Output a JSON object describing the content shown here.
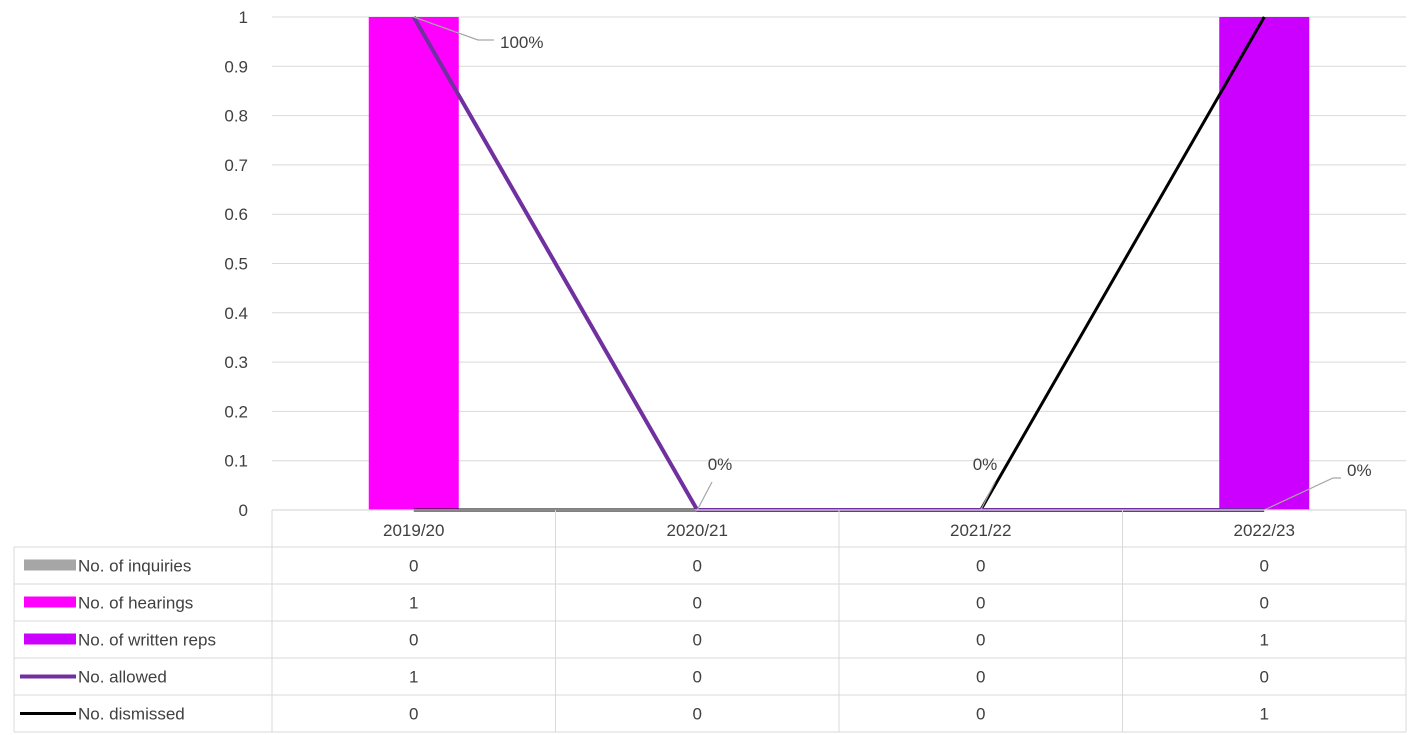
{
  "chart_data": {
    "type": "bar",
    "categories": [
      "2019/20",
      "2020/21",
      "2021/22",
      "2022/23"
    ],
    "ylim": [
      0,
      1
    ],
    "yticks": [
      "0",
      "0.1",
      "0.2",
      "0.3",
      "0.4",
      "0.5",
      "0.6",
      "0.7",
      "0.8",
      "0.9",
      "1"
    ],
    "grid": true,
    "legend": "data-table",
    "series": [
      {
        "name": "No. of inquiries",
        "kind": "bar",
        "color": "#a6a6a6",
        "values": [
          0,
          0,
          0,
          0
        ]
      },
      {
        "name": "No. of hearings",
        "kind": "bar",
        "color": "#ff00ff",
        "values": [
          1,
          0,
          0,
          0
        ]
      },
      {
        "name": "No. of written reps",
        "kind": "bar",
        "color": "#cc00ff",
        "values": [
          0,
          0,
          0,
          1
        ]
      },
      {
        "name": "No. allowed",
        "kind": "line",
        "color": "#7030a0",
        "values": [
          1,
          0,
          0,
          0
        ]
      },
      {
        "name": "No. dismissed",
        "kind": "line",
        "color": "#000000",
        "values": [
          0,
          0,
          0,
          1
        ]
      }
    ],
    "data_labels": [
      "100%",
      "0%",
      "0%",
      "0%"
    ]
  }
}
